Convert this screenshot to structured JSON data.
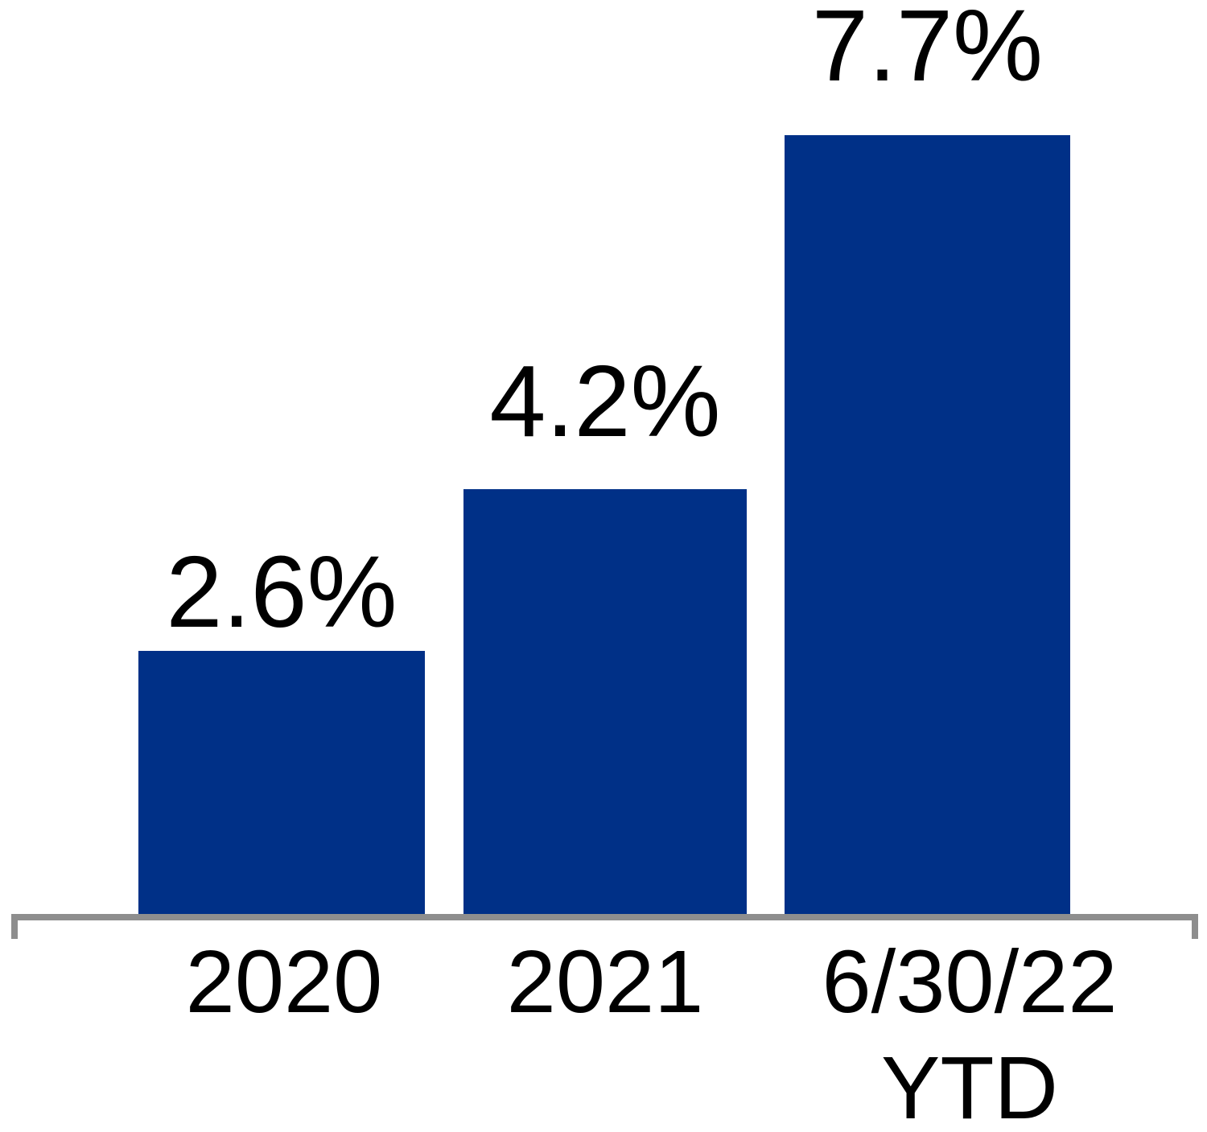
{
  "chart_data": {
    "type": "bar",
    "title": "",
    "xlabel": "",
    "ylabel": "",
    "categories": [
      "2020",
      "2021",
      "6/30/22 YTD"
    ],
    "values": [
      2.6,
      4.2,
      7.7
    ],
    "ylim": [
      0,
      8
    ],
    "grid": false,
    "legend": false,
    "bar_color": "#003087",
    "axis_color": "#8E8E8E",
    "label_color": "#000000",
    "bars": [
      {
        "category": "2020",
        "category_line2": "",
        "value": 2.6,
        "label": "2.6%"
      },
      {
        "category": "2021",
        "category_line2": "",
        "value": 4.2,
        "label": "4.2%"
      },
      {
        "category": "6/30/22",
        "category_line2": "YTD",
        "value": 7.7,
        "label": "7.7%"
      }
    ]
  }
}
